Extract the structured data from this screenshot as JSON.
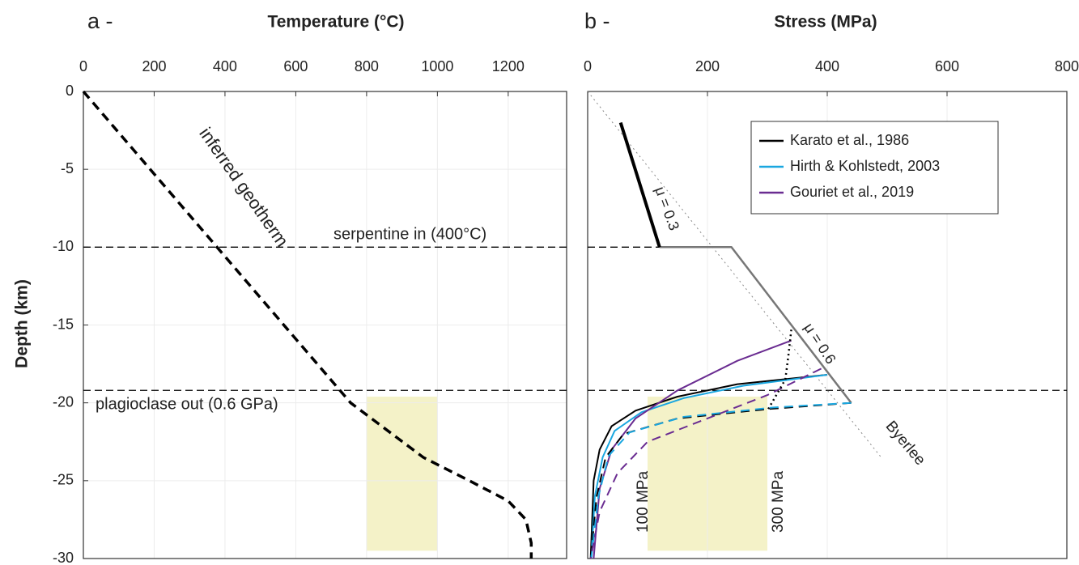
{
  "chart_data": [
    {
      "type": "line",
      "panel": "a -",
      "title": "Temperature (°C)",
      "ylabel": "Depth (km)",
      "xlim": [
        0,
        1365
      ],
      "ylim": [
        -30,
        0
      ],
      "xticks": [
        0,
        200,
        400,
        600,
        800,
        1000,
        1200
      ],
      "yticks": [
        0,
        -5,
        -10,
        -15,
        -20,
        -25,
        -30
      ],
      "grid": true,
      "hlines": [
        {
          "value": -10,
          "label": "serpentine in (400°C)"
        },
        {
          "value": -19.2,
          "label": "plagioclase out (0.6 GPa)"
        }
      ],
      "regions": [
        {
          "x": [
            800,
            1000
          ],
          "y": [
            -29.5,
            -19.6
          ],
          "color": "#f4f2c8"
        }
      ],
      "annotations": [
        "inferred geotherm"
      ],
      "series": [
        {
          "color": "#000000",
          "dash": "dashed",
          "width": 3.5,
          "x": [
            0,
            755,
            960,
            1090,
            1200,
            1250,
            1265,
            1265
          ],
          "y": [
            0,
            -20,
            -23.5,
            -25,
            -26.3,
            -27.5,
            -29,
            -30
          ]
        }
      ]
    },
    {
      "type": "line",
      "panel": "b -",
      "title": "Stress (MPa)",
      "xlim": [
        0,
        800
      ],
      "ylim": [
        -30,
        0
      ],
      "xticks": [
        0,
        200,
        400,
        600,
        800
      ],
      "grid": true,
      "legend": "upper right",
      "hlines": [
        {
          "value": -10
        },
        {
          "value": -19.2
        }
      ],
      "regions": [
        {
          "x": [
            100,
            300
          ],
          "y": [
            -29.5,
            -19.6
          ],
          "color": "#f4f2c8"
        }
      ],
      "annotations": [
        "μ = 0.3",
        "μ = 0.6",
        "Byerlee",
        "100 MPa",
        "300 MPa"
      ],
      "series": [
        {
          "color": "#888888",
          "dash": "dotted",
          "width": 1,
          "x": [
            0,
            490
          ],
          "y": [
            0,
            -23.5
          ]
        },
        {
          "color": "#777777",
          "dash": "solid",
          "width": 2.5,
          "x": [
            120,
            240,
            440
          ],
          "y": [
            -10,
            -10,
            -20
          ]
        },
        {
          "color": "#000000",
          "dash": "solid",
          "width": 4,
          "x": [
            55,
            120
          ],
          "y": [
            -2,
            -10
          ]
        },
        {
          "name": "Karato et al., 1986",
          "color": "#000000",
          "dash": "solid",
          "width": 2,
          "x": [
            400,
            250,
            150,
            80,
            40,
            20,
            10,
            5
          ],
          "y": [
            -18.2,
            -18.8,
            -19.6,
            -20.5,
            -21.5,
            -23,
            -25,
            -30
          ]
        },
        {
          "name": "Hirth & Kohlstedt, 2003",
          "color": "#1aa7e0",
          "dash": "solid",
          "width": 2,
          "x": [
            400,
            260,
            160,
            90,
            45,
            25,
            12,
            6
          ],
          "y": [
            -18.2,
            -18.9,
            -19.7,
            -20.6,
            -21.8,
            -23.5,
            -26,
            -30
          ]
        },
        {
          "name": "Gouriet et al., 2019",
          "color": "#6a2c91",
          "dash": "solid",
          "width": 2,
          "x": [
            340,
            250,
            150,
            80,
            40,
            20,
            10
          ],
          "y": [
            -16,
            -17.3,
            -19.2,
            -21,
            -23,
            -25.5,
            -30
          ]
        },
        {
          "color": "#000000",
          "dash": "dashed",
          "width": 2,
          "x": [
            440,
            300,
            150,
            60,
            30,
            15,
            5
          ],
          "y": [
            -20,
            -20.4,
            -21,
            -22,
            -23.5,
            -26,
            -30
          ]
        },
        {
          "color": "#1aa7e0",
          "dash": "dashed",
          "width": 2,
          "x": [
            440,
            310,
            160,
            70,
            35,
            18,
            6
          ],
          "y": [
            -20,
            -20.3,
            -20.9,
            -21.9,
            -23.4,
            -26,
            -30
          ]
        },
        {
          "color": "#6a2c91",
          "dash": "dashed",
          "width": 2,
          "x": [
            390,
            300,
            200,
            100,
            50,
            20,
            5
          ],
          "y": [
            -17.8,
            -19.5,
            -21,
            -22.5,
            -24.5,
            -27,
            -30
          ]
        },
        {
          "color": "#000000",
          "dash": "dotted",
          "width": 2.5,
          "x": [
            340,
            335,
            330,
            300
          ],
          "y": [
            -15.3,
            -17,
            -18.5,
            -20.5
          ]
        }
      ]
    }
  ]
}
